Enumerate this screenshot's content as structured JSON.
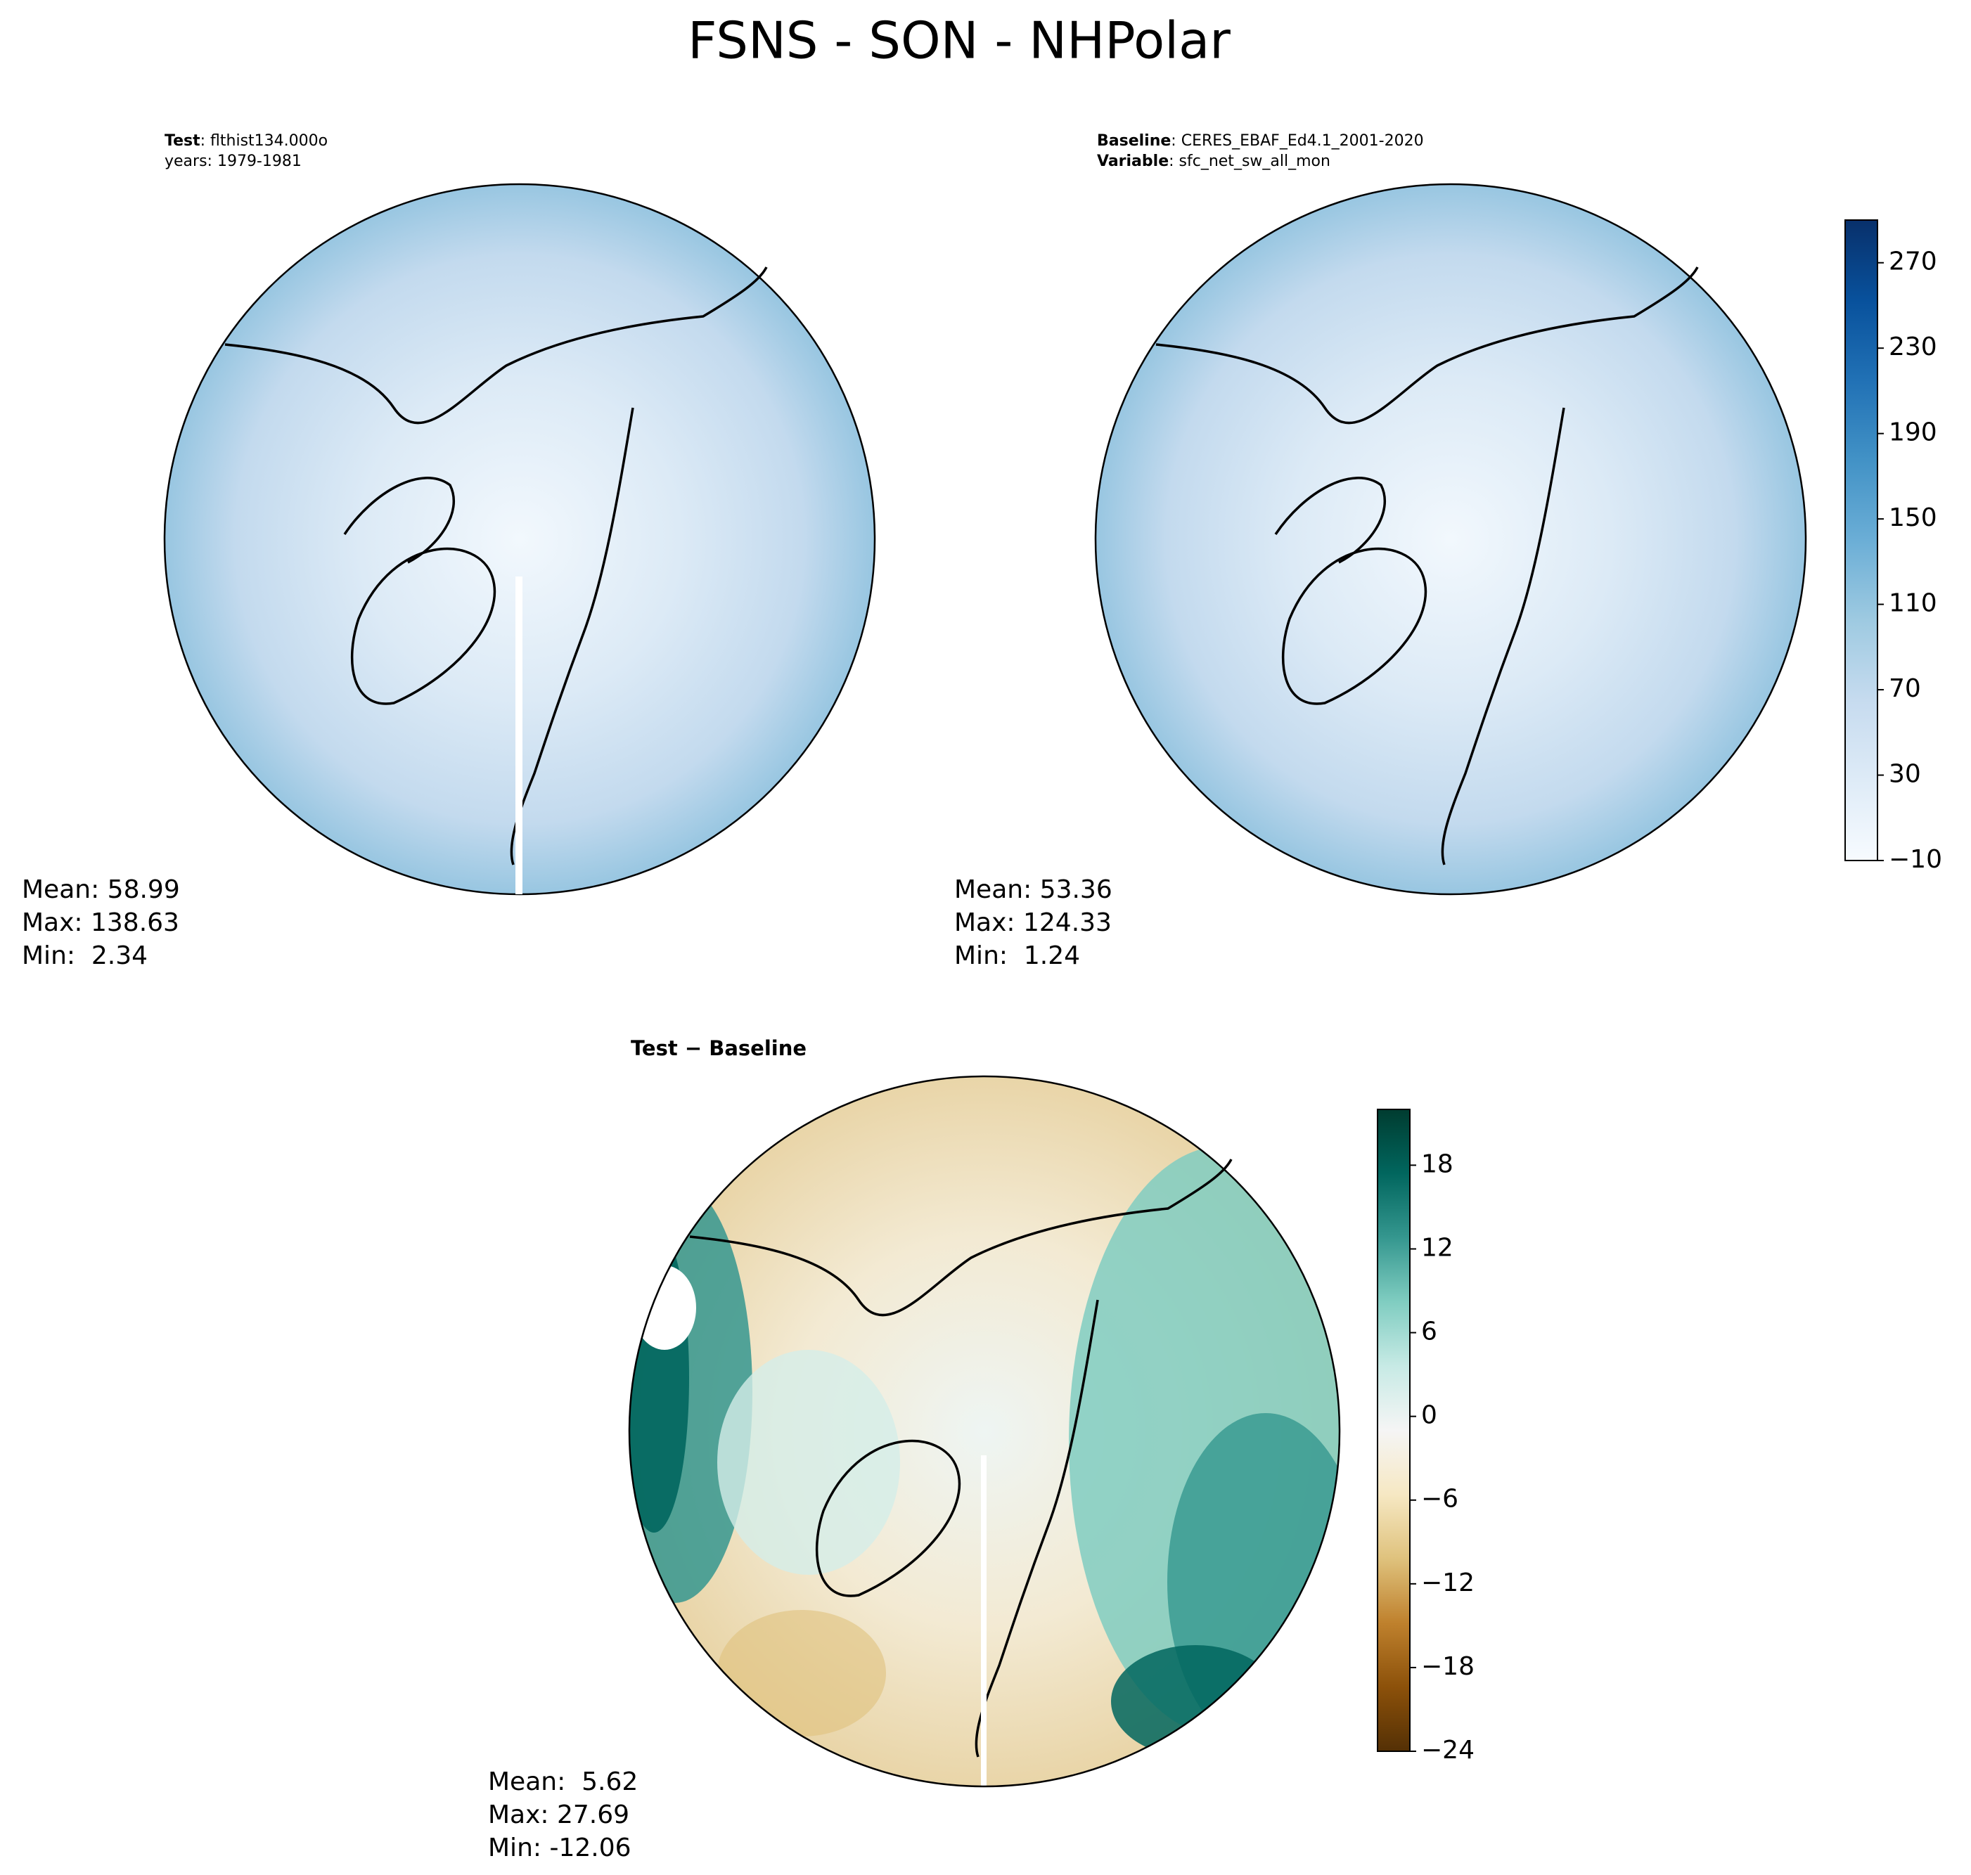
{
  "title": "FSNS - SON - NHPolar",
  "panels": [
    {
      "header": [
        {
          "label": "Test",
          "text": ": flthist134.000o"
        },
        {
          "text": "years: 1979-1981"
        }
      ],
      "stats": [
        "Mean: 58.99",
        "Max: 138.63",
        "Min:  2.34"
      ]
    },
    {
      "header": [
        {
          "label": "Baseline",
          "text": ": CERES_EBAF_Ed4.1_2001-2020"
        },
        {
          "label": "Variable",
          "text": ": sfc_net_sw_all_mon"
        }
      ],
      "stats": [
        "Mean: 53.36",
        "Max: 124.33",
        "Min:  1.24"
      ]
    },
    {
      "title": "Test − Baseline",
      "stats": [
        "Mean:  5.62",
        "Max: 27.69",
        "Min: -12.06"
      ]
    }
  ],
  "colorbars": [
    {
      "lim": [
        -10,
        290
      ],
      "ticks": [
        {
          "value": -10,
          "label": "−10"
        },
        30,
        70,
        110,
        150,
        190,
        230,
        270
      ],
      "colors": [
        "#f7fbff",
        "#deebf7",
        "#c6dbef",
        "#9ecae1",
        "#6baed6",
        "#4292c6",
        "#2171b5",
        "#08519c",
        "#08306b"
      ]
    },
    {
      "lim": [
        -24,
        22
      ],
      "ticks": [
        {
          "value": -24,
          "label": "−24"
        },
        {
          "value": -18,
          "label": "−18"
        },
        {
          "value": -12,
          "label": "−12"
        },
        {
          "value": -6,
          "label": "−6"
        },
        0,
        6,
        12,
        18
      ],
      "colors": [
        "#543005",
        "#8c510a",
        "#bf812d",
        "#dfc27d",
        "#f6e8c3",
        "#f5f5f5",
        "#c7eae5",
        "#80cdc1",
        "#35978f",
        "#01665e",
        "#003c30"
      ]
    }
  ]
}
